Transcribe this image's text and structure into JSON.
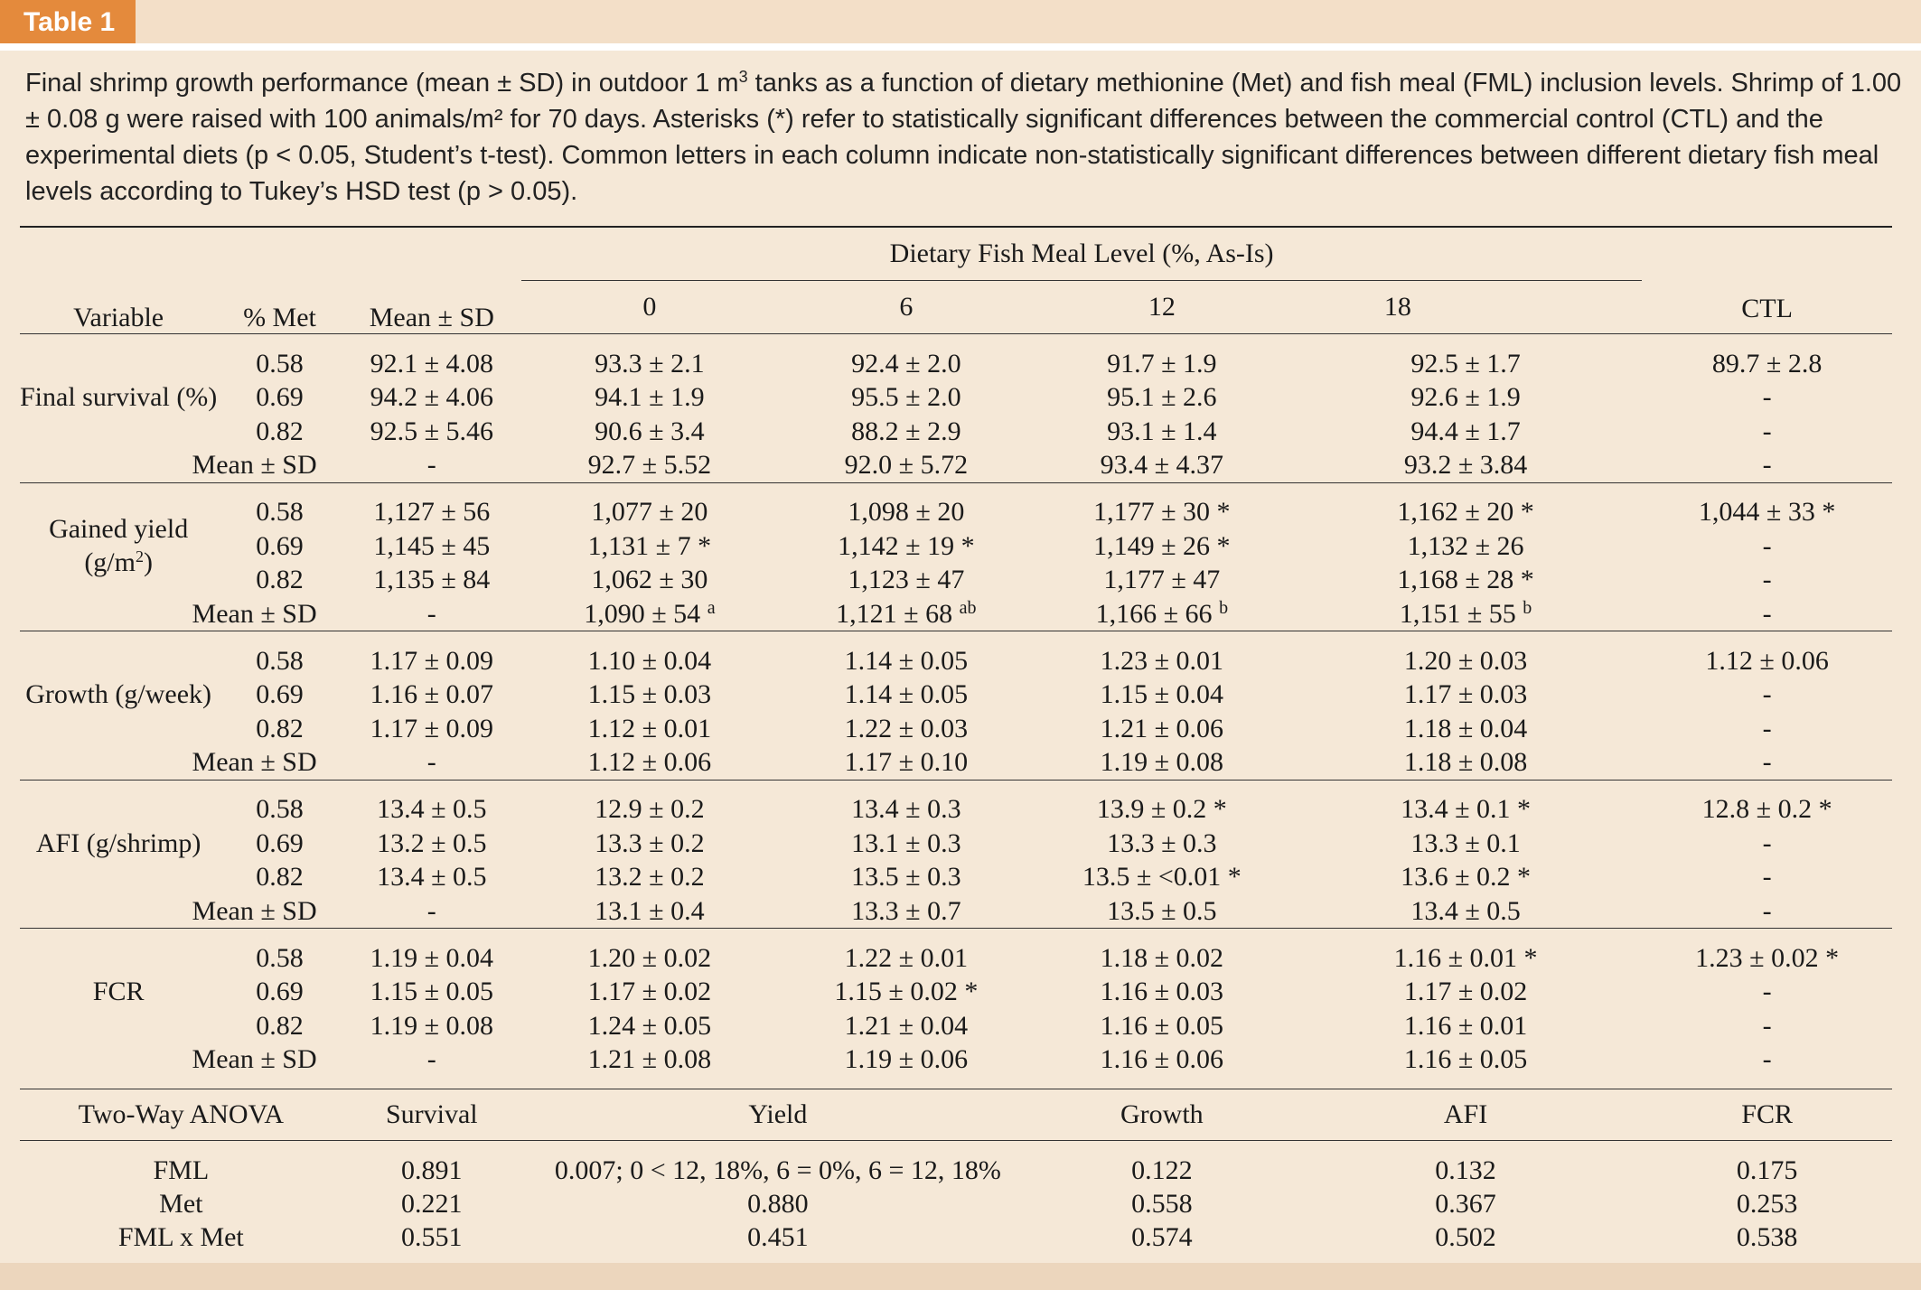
{
  "tag": "Table 1",
  "caption": {
    "part1": "Final shrimp growth performance (mean ± SD) in outdoor 1 m",
    "sup": "3",
    "part2": " tanks as a function of dietary methionine (Met) and fish meal (FML) inclusion levels. Shrimp of 1.00 ± 0.08 g were raised with 100 animals/m² for 70 days. Asterisks (*) refer to statistically significant differences between the commercial control (CTL) and the experimental diets (p < 0.05, Student’s t-test). Common letters in each column indicate non-statistically significant differences between different dietary fish meal levels according to Tukey’s HSD test (p > 0.05)."
  },
  "headers": {
    "variable": "Variable",
    "met": "% Met",
    "mean_sd": "Mean ± SD",
    "fml_group": "Dietary Fish Meal Level (%, As-Is)",
    "fml_levels": [
      "0",
      "6",
      "12",
      "18"
    ],
    "ctl": "CTL"
  },
  "mean_label": "Mean ± SD",
  "met_levels": [
    "0.58",
    "0.69",
    "0.82"
  ],
  "dash": "-",
  "groups": [
    {
      "name": "Final survival (%)",
      "rows": [
        [
          "92.1 ± 4.08",
          "93.3 ± 2.1",
          "92.4 ± 2.0",
          "91.7 ± 1.9",
          "92.5 ± 1.7",
          "89.7 ± 2.8"
        ],
        [
          "94.2 ± 4.06",
          "94.1 ± 1.9",
          "95.5 ± 2.0",
          "95.1 ± 2.6",
          "92.6 ± 1.9",
          "-"
        ],
        [
          "92.5 ± 5.46",
          "90.6 ± 3.4",
          "88.2 ± 2.9",
          "93.1 ± 1.4",
          "94.4 ± 1.7",
          "-"
        ]
      ],
      "means": [
        "-",
        "92.7 ± 5.52",
        "92.0 ± 5.72",
        "93.4 ± 4.37",
        "93.2 ± 3.84",
        "-"
      ]
    },
    {
      "name_line1": "Gained yield",
      "name_line2": "(g/m",
      "name_sup": "2",
      "name_line2_end": ")",
      "rows": [
        [
          "1,127 ± 56",
          "1,077 ± 20",
          "1,098 ± 20",
          "1,177 ± 30 *",
          "1,162 ± 20 *",
          "1,044 ± 33 *"
        ],
        [
          "1,145 ± 45",
          "1,131 ± 7 *",
          "1,142 ± 19 *",
          "1,149 ± 26 *",
          "1,132 ± 26",
          "-"
        ],
        [
          "1,135 ± 84",
          "1,062 ± 30",
          "1,123 ± 47",
          "1,177 ± 47",
          "1,168 ± 28 *",
          "-"
        ]
      ],
      "means": [
        "-",
        "1,090 ± 54",
        "1,121 ± 68",
        "1,166 ± 66",
        "1,151 ± 55",
        "-"
      ],
      "mean_letters": [
        "a",
        "ab",
        "b",
        "b"
      ]
    },
    {
      "name": "Growth (g/week)",
      "rows": [
        [
          "1.17 ± 0.09",
          "1.10 ± 0.04",
          "1.14 ± 0.05",
          "1.23 ± 0.01",
          "1.20 ± 0.03",
          "1.12 ± 0.06"
        ],
        [
          "1.16 ± 0.07",
          "1.15 ± 0.03",
          "1.14 ± 0.05",
          "1.15 ± 0.04",
          "1.17 ± 0.03",
          "-"
        ],
        [
          "1.17 ± 0.09",
          "1.12 ± 0.01",
          "1.22 ± 0.03",
          "1.21 ± 0.06",
          "1.18 ± 0.04",
          "-"
        ]
      ],
      "means": [
        "-",
        "1.12 ± 0.06",
        "1.17 ± 0.10",
        "1.19 ± 0.08",
        "1.18 ± 0.08",
        "-"
      ]
    },
    {
      "name": "AFI (g/shrimp)",
      "rows": [
        [
          "13.4 ± 0.5",
          "12.9 ± 0.2",
          "13.4 ± 0.3",
          "13.9 ± 0.2 *",
          "13.4 ± 0.1 *",
          "12.8 ± 0.2 *"
        ],
        [
          "13.2 ± 0.5",
          "13.3 ± 0.2",
          "13.1 ± 0.3",
          "13.3 ± 0.3",
          "13.3 ± 0.1",
          "-"
        ],
        [
          "13.4 ± 0.5",
          "13.2 ± 0.2",
          "13.5 ± 0.3",
          "13.5 ± <0.01 *",
          "13.6 ± 0.2 *",
          "-"
        ]
      ],
      "means": [
        "-",
        "13.1 ± 0.4",
        "13.3 ± 0.7",
        "13.5 ± 0.5",
        "13.4 ± 0.5",
        "-"
      ]
    },
    {
      "name": "FCR",
      "rows": [
        [
          "1.19 ± 0.04",
          "1.20 ± 0.02",
          "1.22 ± 0.01",
          "1.18 ± 0.02",
          "1.16 ± 0.01 *",
          "1.23 ± 0.02 *"
        ],
        [
          "1.15 ± 0.05",
          "1.17 ± 0.02",
          "1.15 ± 0.02 *",
          "1.16 ± 0.03",
          "1.17 ± 0.02",
          "-"
        ],
        [
          "1.19 ± 0.08",
          "1.24 ± 0.05",
          "1.21 ± 0.04",
          "1.16 ± 0.05",
          "1.16 ± 0.01",
          "-"
        ]
      ],
      "means": [
        "-",
        "1.21 ± 0.08",
        "1.19 ± 0.06",
        "1.16 ± 0.06",
        "1.16 ± 0.05",
        "-"
      ]
    }
  ],
  "anova": {
    "headers": [
      "Two-Way ANOVA",
      "Survival",
      "Yield",
      "Growth",
      "AFI",
      "FCR"
    ],
    "rows": [
      [
        "FML",
        "0.891",
        "0.007; 0 < 12, 18%, 6 = 0%, 6 = 12, 18%",
        "0.122",
        "0.132",
        "0.175"
      ],
      [
        "Met",
        "0.221",
        "0.880",
        "0.558",
        "0.367",
        "0.253"
      ],
      [
        "FML x Met",
        "0.551",
        "0.451",
        "0.574",
        "0.502",
        "0.538"
      ]
    ]
  }
}
